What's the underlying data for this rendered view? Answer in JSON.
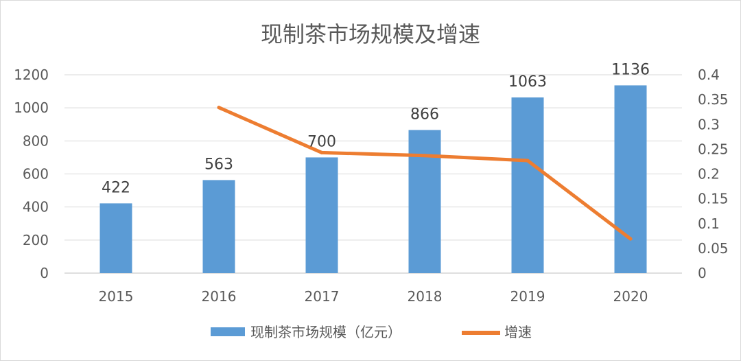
{
  "chart_data": {
    "type": "bar",
    "title": "现制茶市场规模及增速",
    "categories": [
      "2015",
      "2016",
      "2017",
      "2018",
      "2019",
      "2020"
    ],
    "series": [
      {
        "name": "现制茶市场规模（亿元）",
        "type": "bar",
        "axis": "left",
        "color": "#5b9bd5",
        "values": [
          422,
          563,
          700,
          866,
          1063,
          1136
        ],
        "data_labels": [
          "422",
          "563",
          "700",
          "866",
          "1063",
          "1136"
        ]
      },
      {
        "name": "增速",
        "type": "line",
        "axis": "right",
        "color": "#ed7d31",
        "values": [
          null,
          0.334,
          0.243,
          0.237,
          0.227,
          0.069
        ]
      }
    ],
    "y_left": {
      "min": 0,
      "max": 1200,
      "ticks": [
        "0",
        "200",
        "400",
        "600",
        "800",
        "1000",
        "1200"
      ]
    },
    "y_right": {
      "min": 0,
      "max": 0.4,
      "ticks": [
        "0",
        "0.05",
        "0.1",
        "0.15",
        "0.2",
        "0.25",
        "0.3",
        "0.35",
        "0.4"
      ]
    },
    "grid": true,
    "legend": "bottom"
  }
}
